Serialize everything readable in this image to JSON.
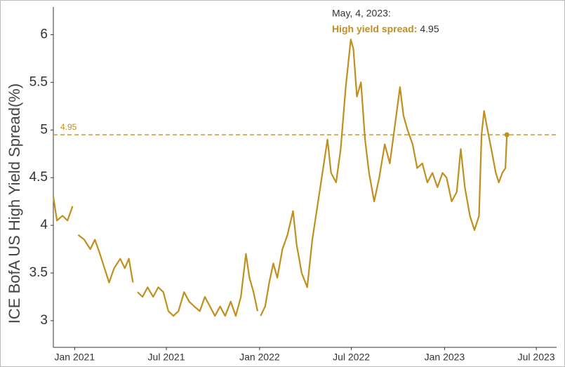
{
  "chart_data": {
    "type": "line",
    "y_axis_label": "ICE BofA US High Yield Spread(%)",
    "x": [
      "2020-11-20",
      "2020-11-27",
      "2020-12-08",
      "2020-12-18",
      "2020-12-28",
      "2021-01-05",
      "2021-01-08",
      "2021-01-20",
      "2021-02-01",
      "2021-02-10",
      "2021-02-20",
      "2021-03-01",
      "2021-03-10",
      "2021-03-20",
      "2021-04-01",
      "2021-04-10",
      "2021-04-18",
      "2021-04-26",
      "2021-05-01",
      "2021-05-05",
      "2021-05-15",
      "2021-05-25",
      "2021-06-05",
      "2021-06-15",
      "2021-06-25",
      "2021-07-05",
      "2021-07-15",
      "2021-07-25",
      "2021-08-05",
      "2021-08-15",
      "2021-08-25",
      "2021-09-05",
      "2021-09-15",
      "2021-09-25",
      "2021-10-05",
      "2021-10-15",
      "2021-10-25",
      "2021-11-05",
      "2021-11-15",
      "2021-11-25",
      "2021-12-05",
      "2021-12-12",
      "2021-12-20",
      "2021-12-28",
      "2022-01-01",
      "2022-01-03",
      "2022-01-12",
      "2022-01-20",
      "2022-01-28",
      "2022-02-05",
      "2022-02-15",
      "2022-02-25",
      "2022-03-08",
      "2022-03-15",
      "2022-03-25",
      "2022-04-05",
      "2022-04-15",
      "2022-04-25",
      "2022-05-05",
      "2022-05-15",
      "2022-05-22",
      "2022-06-01",
      "2022-06-10",
      "2022-06-20",
      "2022-06-30",
      "2022-07-05",
      "2022-07-12",
      "2022-07-20",
      "2022-07-28",
      "2022-08-05",
      "2022-08-15",
      "2022-08-25",
      "2022-09-05",
      "2022-09-15",
      "2022-09-25",
      "2022-10-05",
      "2022-10-12",
      "2022-10-20",
      "2022-10-30",
      "2022-11-08",
      "2022-11-18",
      "2022-11-28",
      "2022-12-08",
      "2022-12-18",
      "2022-12-28",
      "2023-01-05",
      "2023-01-15",
      "2023-01-25",
      "2023-02-02",
      "2023-02-10",
      "2023-02-20",
      "2023-03-01",
      "2023-03-10",
      "2023-03-15",
      "2023-03-20",
      "2023-03-25",
      "2023-04-05",
      "2023-04-12",
      "2023-04-18",
      "2023-04-25",
      "2023-05-01",
      "2023-05-04"
    ],
    "series": [
      {
        "color": "#c18f1e",
        "values": [
          4.3,
          4.05,
          4.1,
          4.05,
          4.2,
          null,
          3.9,
          3.85,
          3.75,
          3.85,
          3.7,
          3.55,
          3.4,
          3.55,
          3.65,
          3.55,
          3.65,
          3.4,
          null,
          3.3,
          3.25,
          3.35,
          3.25,
          3.35,
          3.3,
          3.1,
          3.05,
          3.1,
          3.3,
          3.2,
          3.15,
          3.1,
          3.25,
          3.15,
          3.05,
          3.15,
          3.05,
          3.2,
          3.05,
          3.25,
          3.7,
          3.45,
          3.3,
          3.1,
          null,
          3.05,
          3.15,
          3.4,
          3.6,
          3.45,
          3.75,
          3.9,
          4.15,
          3.8,
          3.5,
          3.35,
          3.85,
          4.2,
          4.55,
          4.9,
          4.55,
          4.45,
          4.8,
          5.45,
          5.95,
          5.85,
          5.35,
          5.5,
          4.9,
          4.55,
          4.25,
          4.5,
          4.85,
          4.65,
          5.05,
          5.45,
          5.15,
          5.0,
          4.85,
          4.6,
          4.65,
          4.45,
          4.55,
          4.4,
          4.55,
          4.5,
          4.25,
          4.35,
          4.8,
          4.4,
          4.1,
          3.95,
          4.1,
          4.95,
          5.2,
          5.05,
          4.75,
          4.55,
          4.45,
          4.55,
          4.6,
          4.95
        ]
      }
    ],
    "xlim": [
      "2020-11-20",
      "2023-08-10"
    ],
    "xticks": [
      {
        "value": "2021-01-01",
        "label": "Jan 2021"
      },
      {
        "value": "2021-07-01",
        "label": "Jul 2021"
      },
      {
        "value": "2022-01-01",
        "label": "Jan 2022"
      },
      {
        "value": "2022-07-01",
        "label": "Jul 2022"
      },
      {
        "value": "2023-01-01",
        "label": "Jan 2023"
      },
      {
        "value": "2023-07-01",
        "label": "Jul 2023"
      }
    ],
    "ylim": [
      2.72,
      6.29
    ],
    "yticks": [
      3,
      3.5,
      4,
      4.5,
      5,
      5.5,
      6
    ],
    "grid": false,
    "reference_line": {
      "value": 4.95
    },
    "tooltip": {
      "title": "May, 4, 2023:",
      "label": "High yield spread:",
      "value": 4.95
    }
  }
}
